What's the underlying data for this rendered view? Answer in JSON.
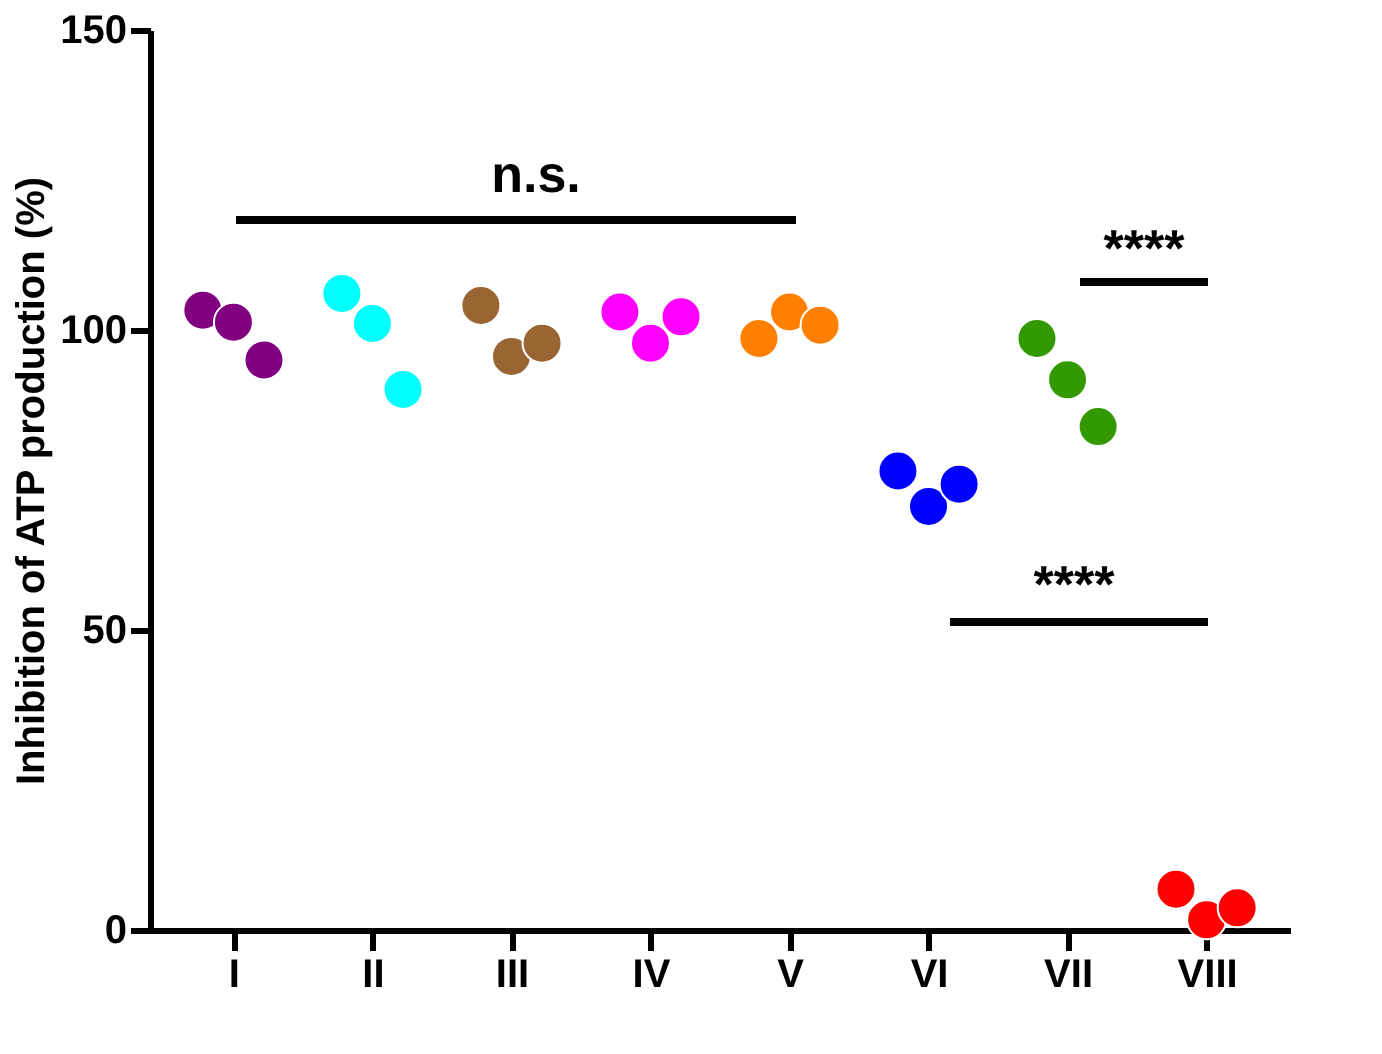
{
  "chart_data": {
    "type": "scatter",
    "ylabel": "Inhibition of ATP production (%)",
    "categories": [
      "I",
      "II",
      "III",
      "IV",
      "V",
      "VI",
      "VII",
      "VIII"
    ],
    "ylim": [
      0,
      150
    ],
    "yticks": [
      0,
      50,
      100,
      150
    ],
    "grid": false,
    "marker": "circle",
    "series": [
      {
        "color": "#800080",
        "x": [
          "I",
          "I",
          "I"
        ],
        "values": [
          103.3,
          101.3,
          95.0
        ]
      },
      {
        "color": "#00ffff",
        "x": [
          "II",
          "II",
          "II"
        ],
        "values": [
          106.1,
          101.1,
          90.1
        ]
      },
      {
        "color": "#996633",
        "x": [
          "III",
          "III",
          "III"
        ],
        "values": [
          104.1,
          95.6,
          97.8
        ]
      },
      {
        "color": "#ff00ff",
        "x": [
          "IV",
          "IV",
          "IV"
        ],
        "values": [
          103.0,
          97.8,
          102.2
        ]
      },
      {
        "color": "#ff8000",
        "x": [
          "V",
          "V",
          "V"
        ],
        "values": [
          98.6,
          103.0,
          100.8
        ]
      },
      {
        "color": "#0000ff",
        "x": [
          "VI",
          "VI",
          "VI"
        ],
        "values": [
          76.5,
          70.6,
          74.3
        ]
      },
      {
        "color": "#339900",
        "x": [
          "VII",
          "VII",
          "VII"
        ],
        "values": [
          98.6,
          91.7,
          83.9
        ]
      },
      {
        "color": "#ff0000",
        "x": [
          "VIII",
          "VIII",
          "VIII"
        ],
        "values": [
          6.8,
          1.7,
          3.7
        ]
      }
    ],
    "annotations": [
      "n.s.",
      "****",
      "****"
    ]
  }
}
